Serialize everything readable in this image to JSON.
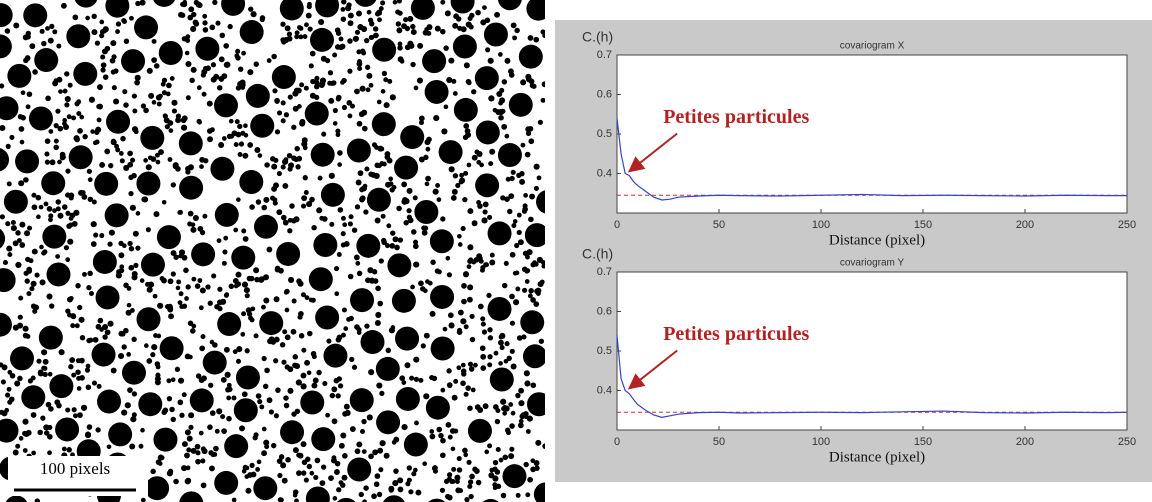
{
  "image": {
    "scale_label": "100 pixels"
  },
  "chart_data": [
    {
      "type": "line",
      "title": "covariogram X",
      "ylabel": "C.(h)",
      "xlabel": "Distance (pixel)",
      "annotation": {
        "text": "Petites particules",
        "x": 5,
        "y": 0.4,
        "color": "#b22222"
      },
      "x": [
        0,
        2,
        4,
        6,
        8,
        10,
        14,
        18,
        22,
        26,
        30,
        40,
        50,
        60,
        80,
        100,
        120,
        140,
        160,
        180,
        200,
        220,
        240,
        250
      ],
      "series": [
        {
          "color": "#3344cc",
          "values": [
            0.54,
            0.45,
            0.4,
            0.395,
            0.38,
            0.37,
            0.355,
            0.34,
            0.333,
            0.335,
            0.34,
            0.343,
            0.345,
            0.344,
            0.343,
            0.345,
            0.347,
            0.344,
            0.345,
            0.344,
            0.343,
            0.345,
            0.344,
            0.344
          ]
        }
      ],
      "reference_line": {
        "value": 0.345,
        "color": "#cc3333",
        "dashed": true
      },
      "xlim": [
        0,
        250
      ],
      "xticks": [
        0,
        50,
        100,
        150,
        200,
        250
      ],
      "ylim": [
        0.3,
        0.7
      ],
      "yticks": [
        0.4,
        0.5,
        0.6,
        0.7
      ]
    },
    {
      "type": "line",
      "title": "covariogram Y",
      "ylabel": "C.(h)",
      "xlabel": "Distance (pixel)",
      "annotation": {
        "text": "Petites particules",
        "x": 5,
        "y": 0.4,
        "color": "#b22222"
      },
      "x": [
        0,
        2,
        4,
        6,
        8,
        10,
        14,
        18,
        22,
        26,
        30,
        40,
        50,
        60,
        80,
        100,
        120,
        140,
        160,
        180,
        200,
        220,
        240,
        250
      ],
      "series": [
        {
          "color": "#3344cc",
          "values": [
            0.54,
            0.43,
            0.4,
            0.392,
            0.378,
            0.365,
            0.35,
            0.338,
            0.332,
            0.336,
            0.34,
            0.344,
            0.345,
            0.343,
            0.344,
            0.345,
            0.344,
            0.346,
            0.348,
            0.344,
            0.343,
            0.345,
            0.344,
            0.345
          ]
        }
      ],
      "reference_line": {
        "value": 0.345,
        "color": "#cc3333",
        "dashed": true
      },
      "xlim": [
        0,
        250
      ],
      "xticks": [
        0,
        50,
        100,
        150,
        200,
        250
      ],
      "ylim": [
        0.3,
        0.7
      ],
      "yticks": [
        0.4,
        0.5,
        0.6,
        0.7
      ]
    }
  ]
}
